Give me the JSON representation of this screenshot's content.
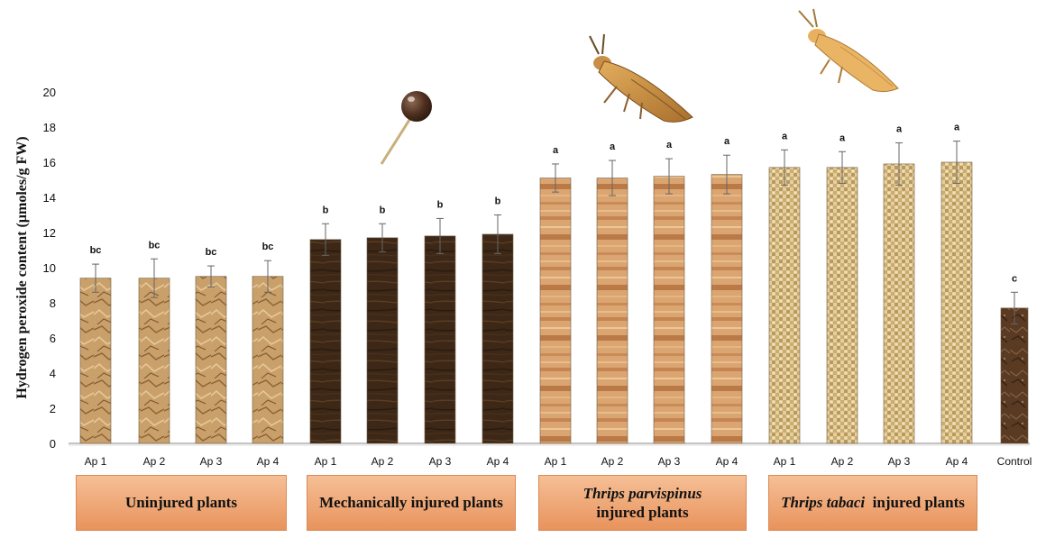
{
  "chart_data": {
    "type": "bar",
    "title": "",
    "ylabel": "Hydrogen peroxide  content (µmoles/g FW)",
    "ylim": [
      0,
      20
    ],
    "yticks": [
      "0",
      "2",
      "4",
      "6",
      "8",
      "10",
      "12",
      "14",
      "16",
      "18",
      "20"
    ],
    "grid": false,
    "categories": [
      "Ap 1",
      "Ap 2",
      "Ap 3",
      "Ap 4",
      "Ap 1",
      "Ap 2",
      "Ap 3",
      "Ap 4",
      "Ap 1",
      "Ap 2",
      "Ap 3",
      "Ap 4",
      "Ap 1",
      "Ap 2",
      "Ap 3",
      "Ap 4",
      "Control"
    ],
    "values": [
      9.4,
      9.4,
      9.5,
      9.5,
      11.6,
      11.7,
      11.8,
      11.9,
      15.1,
      15.1,
      15.2,
      15.3,
      15.7,
      15.7,
      15.9,
      16.0,
      7.7
    ],
    "errors": [
      0.8,
      1.1,
      0.6,
      0.9,
      0.9,
      0.8,
      1.0,
      1.1,
      0.8,
      1.0,
      1.0,
      1.1,
      1.0,
      0.9,
      1.2,
      1.2,
      0.9
    ],
    "significance": [
      "bc",
      "bc",
      "bc",
      "bc",
      "b",
      "b",
      "b",
      "b",
      "a",
      "a",
      "a",
      "a",
      "a",
      "a",
      "a",
      "a",
      "c"
    ],
    "bar_colors": [
      "#c9a06a",
      "#c9a06a",
      "#c9a06a",
      "#c9a06a",
      "#3d2817",
      "#3d2817",
      "#3d2817",
      "#3d2817",
      "#d9a471",
      "#d9a471",
      "#d9a471",
      "#d9a471",
      "#d8c090",
      "#d8c090",
      "#d8c090",
      "#d8c090",
      "#5a3a22"
    ],
    "groups": [
      {
        "label_italic": "",
        "label": "Uninjured plants",
        "bars": 4
      },
      {
        "label_italic": "",
        "label": "Mechanically injured plants",
        "bars": 4
      },
      {
        "label_italic": "Thrips parvispinus",
        "label": "injured plants",
        "bars": 4
      },
      {
        "label_italic": "Thrips tabaci",
        "label": "injured plants",
        "bars": 4
      }
    ]
  },
  "illustrations": {
    "pin_icon": "pin-icon",
    "thrips_parvispinus_icon": "thrips-insect-icon",
    "thrips_tabaci_icon": "thrips-insect-icon"
  }
}
